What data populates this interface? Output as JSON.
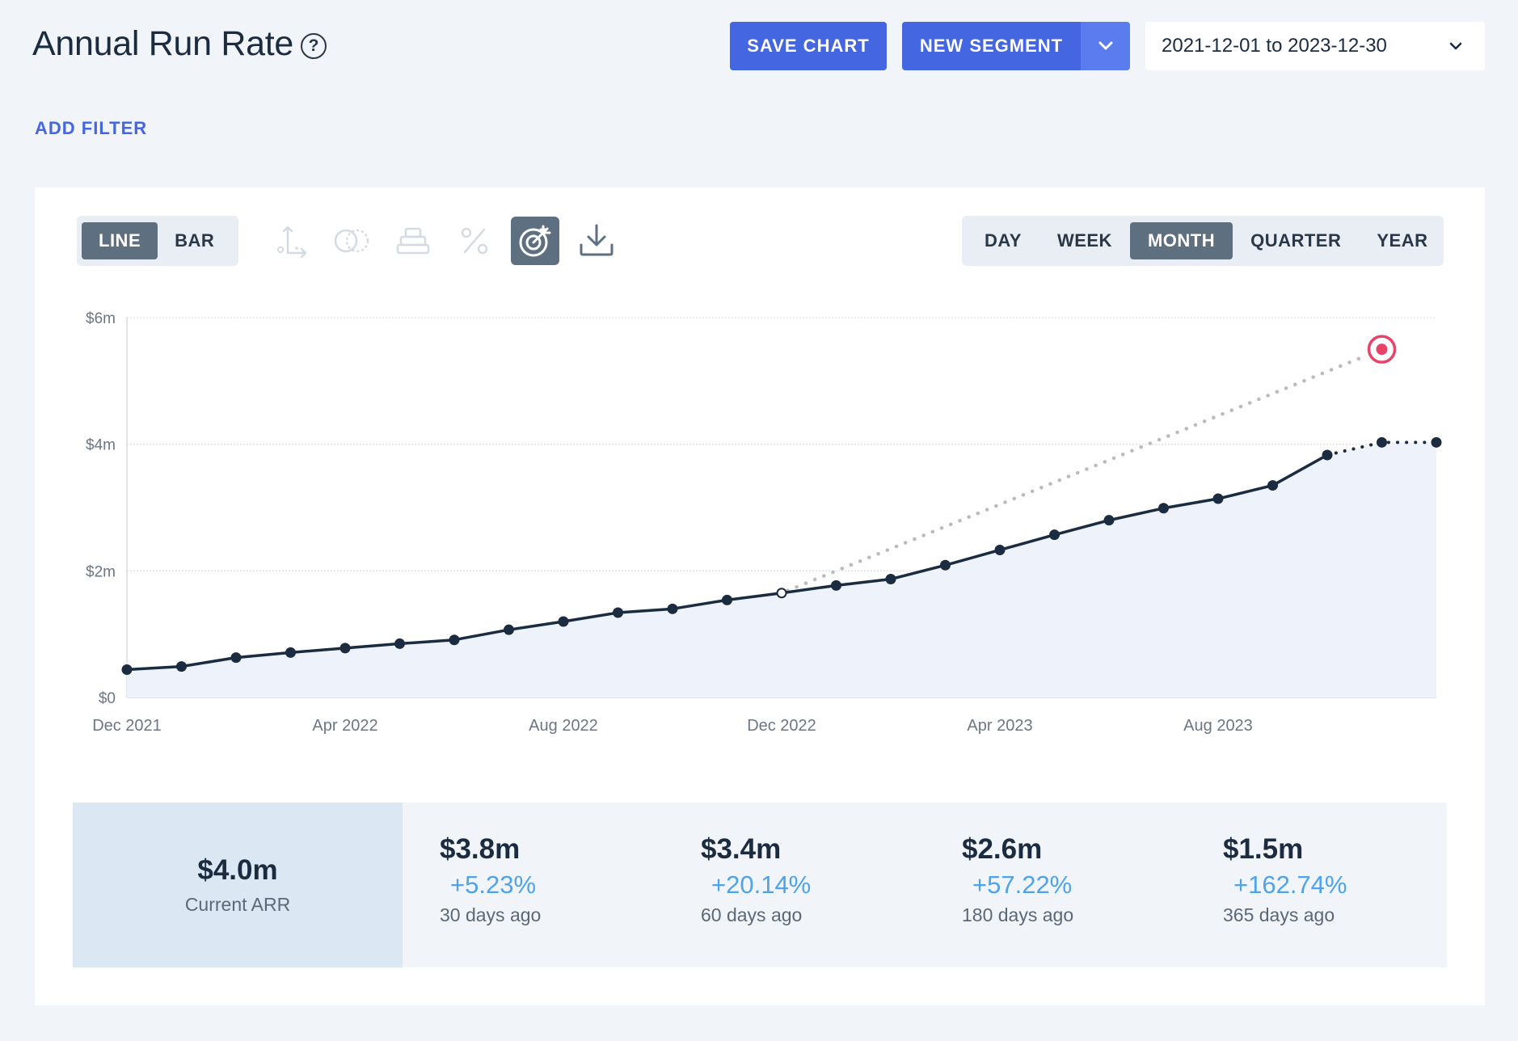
{
  "header": {
    "title": "Annual Run Rate",
    "help_icon": "question-circle-icon",
    "save_chart_label": "SAVE CHART",
    "new_segment_label": "NEW SEGMENT",
    "date_range": "2021-12-01 to 2023-12-30"
  },
  "filters": {
    "add_filter_label": "ADD FILTER"
  },
  "toolbar": {
    "chart_types": [
      {
        "label": "LINE",
        "active": true
      },
      {
        "label": "BAR",
        "active": false
      }
    ],
    "tools": [
      {
        "icon": "axis-icon",
        "enabled": false
      },
      {
        "icon": "compare-circles-icon",
        "enabled": false
      },
      {
        "icon": "stack-icon",
        "enabled": false
      },
      {
        "icon": "percent-icon",
        "enabled": false
      },
      {
        "icon": "target-goal-icon",
        "enabled": true,
        "active": true
      },
      {
        "icon": "download-icon",
        "enabled": true
      }
    ],
    "intervals": [
      {
        "label": "DAY",
        "active": false
      },
      {
        "label": "WEEK",
        "active": false
      },
      {
        "label": "MONTH",
        "active": true
      },
      {
        "label": "QUARTER",
        "active": false
      },
      {
        "label": "YEAR",
        "active": false
      }
    ]
  },
  "colors": {
    "accent": "#4466e0",
    "line": "#1b2b40",
    "area": "#eef2fb",
    "goal": "#e8446a",
    "change_positive": "#4fa3ea"
  },
  "chart_data": {
    "type": "line",
    "y_tick_labels": [
      "$0",
      "$2m",
      "$4m",
      "$6m"
    ],
    "y_ticks": [
      0,
      2,
      4,
      6
    ],
    "ylim": [
      0,
      6
    ],
    "y_unit": "$m",
    "x_tick_labels": [
      "Dec 2021",
      "Apr 2022",
      "Aug 2022",
      "Dec 2022",
      "Apr 2023",
      "Aug 2023"
    ],
    "x_tick_index": [
      0,
      4,
      8,
      12,
      16,
      20
    ],
    "x": [
      "2021-12",
      "2022-01",
      "2022-02",
      "2022-03",
      "2022-04",
      "2022-05",
      "2022-06",
      "2022-07",
      "2022-08",
      "2022-09",
      "2022-10",
      "2022-11",
      "2022-12",
      "2023-01",
      "2023-02",
      "2023-03",
      "2023-04",
      "2023-05",
      "2023-06",
      "2023-07",
      "2023-08",
      "2023-09",
      "2023-10",
      "2023-11",
      "2023-12"
    ],
    "series": [
      {
        "values": [
          0.44,
          0.49,
          0.63,
          0.71,
          0.78,
          0.85,
          0.91,
          1.07,
          1.2,
          1.34,
          1.4,
          1.54,
          1.65,
          1.77,
          1.87,
          2.09,
          2.33,
          2.57,
          2.8,
          2.99,
          3.14,
          3.35,
          3.83,
          4.03,
          4.03
        ],
        "projected_from_index": 22
      },
      {
        "start_index": 12,
        "start_value": 1.65,
        "end_index": 23,
        "end_value": 5.5
      }
    ],
    "grid": true
  },
  "stats": {
    "current": {
      "value": "$4.0m",
      "label": "Current ARR"
    },
    "history": [
      {
        "value": "$3.8m",
        "change": "+5.23%",
        "label": "30 days ago"
      },
      {
        "value": "$3.4m",
        "change": "+20.14%",
        "label": "60 days ago"
      },
      {
        "value": "$2.6m",
        "change": "+57.22%",
        "label": "180 days ago"
      },
      {
        "value": "$1.5m",
        "change": "+162.74%",
        "label": "365 days ago"
      }
    ]
  }
}
